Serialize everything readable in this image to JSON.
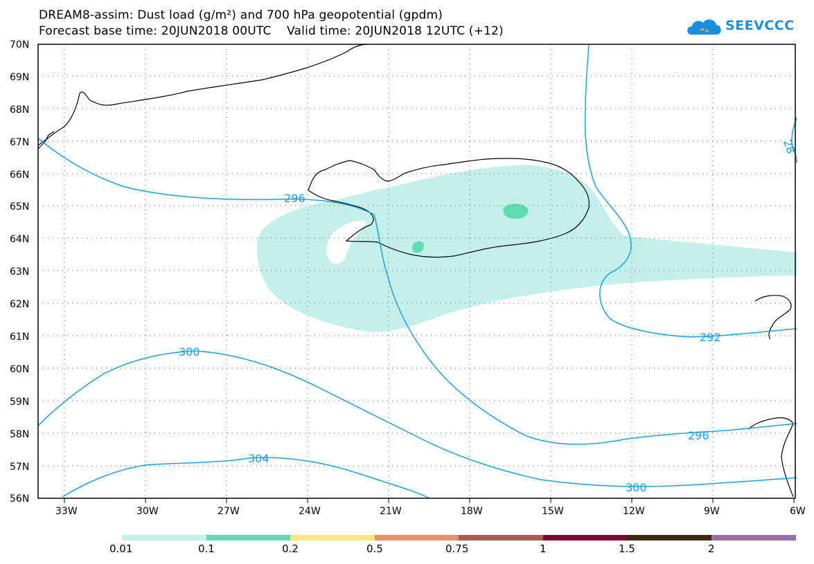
{
  "header": {
    "line1": "DREAM8-assim: Dust load (g/m²) and 700 hPa geopotential (gpdm)",
    "line2": "Forecast base time: 20JUN2018 00UTC    Valid time: 20JUN2018 12UTC (+12)"
  },
  "logo": {
    "text": "SEEVCCC",
    "icon": "cloud-logo-icon"
  },
  "colors": {
    "contour": "#1aa0e8",
    "coast": "#000000",
    "dust_0_01": "#c4f0eb",
    "dust_0_1": "#5fdcb0"
  },
  "map": {
    "lat_labels": [
      "70N",
      "69N",
      "68N",
      "67N",
      "66N",
      "65N",
      "64N",
      "63N",
      "62N",
      "61N",
      "60N",
      "59N",
      "58N",
      "57N",
      "56N"
    ],
    "lon_labels": [
      "33W",
      "30W",
      "27W",
      "24W",
      "21W",
      "18W",
      "15W",
      "12W",
      "9W",
      "6W"
    ],
    "contour_labels": [
      "296",
      "292",
      "300",
      "296",
      "304",
      "300",
      "28"
    ]
  },
  "legend": {
    "labels": [
      "0.01",
      "0.1",
      "0.2",
      "0.5",
      "0.75",
      "1",
      "1.5",
      "2"
    ],
    "colors": [
      "#c4f0eb",
      "#5fdcb0",
      "#f5e87a",
      "#e8906a",
      "#a85a50",
      "#800030",
      "#3a2a10",
      "#9a6ea4"
    ]
  }
}
